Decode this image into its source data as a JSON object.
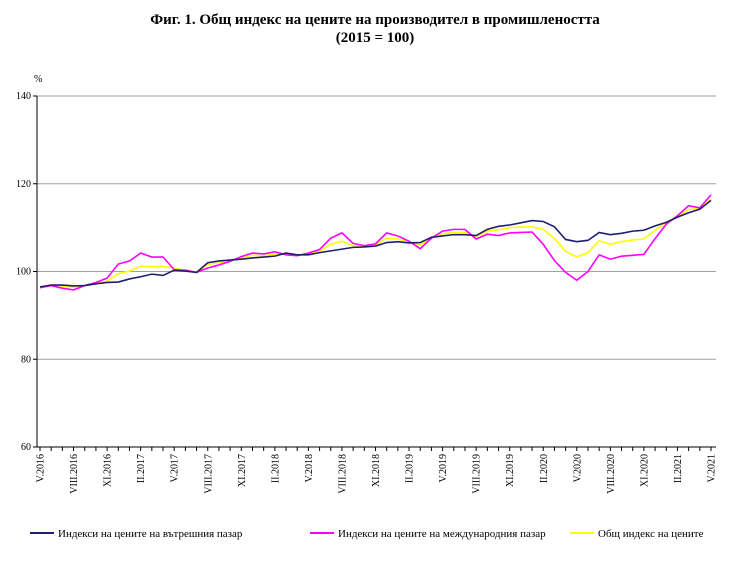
{
  "chart_data": {
    "type": "line",
    "title": "Фиг. 1. Общ индекс на цените на производител в промишлеността",
    "subtitle": "(2015 = 100)",
    "y_label": "%",
    "categories": [
      "V.2016",
      null,
      null,
      "VIII.2016",
      null,
      null,
      "XI.2016",
      null,
      null,
      "II.2017",
      null,
      null,
      "V.2017",
      null,
      null,
      "VIII.2017",
      null,
      null,
      "XI.2017",
      null,
      null,
      "II.2018",
      null,
      null,
      "V.2018",
      null,
      null,
      "VIII.2018",
      null,
      null,
      "XI.2018",
      null,
      null,
      "II.2019",
      null,
      null,
      "V.2019",
      null,
      null,
      "VIII.2019",
      null,
      null,
      "XI.2019",
      null,
      null,
      "II.2020",
      null,
      null,
      "V.2020",
      null,
      null,
      "VIII.2020",
      null,
      null,
      "XI.2020",
      null,
      null,
      "II.2021",
      null,
      null,
      "V.2021"
    ],
    "series": [
      {
        "name": "Индекси на цените на вътрешния пазар",
        "color": "#1f1f6e",
        "values": [
          96.5,
          96.9,
          96.9,
          96.7,
          96.8,
          97.2,
          97.5,
          97.6,
          98.3,
          98.8,
          99.4,
          99.1,
          100.3,
          100.1,
          99.8,
          102.0,
          102.4,
          102.6,
          102.8,
          103.1,
          103.3,
          103.5,
          104.2,
          103.8,
          103.8,
          104.3,
          104.7,
          105.1,
          105.5,
          105.6,
          105.8,
          106.6,
          106.8,
          106.5,
          106.6,
          107.8,
          108.1,
          108.4,
          108.4,
          108.2,
          109.6,
          110.3,
          110.6,
          111.1,
          111.6,
          111.4,
          110.2,
          107.3,
          106.8,
          107.1,
          108.9,
          108.4,
          108.7,
          109.2,
          109.4,
          110.4,
          111.2,
          112.4,
          113.4,
          114.2,
          116.2
        ]
      },
      {
        "name": "Индекси на цените на международния пазар",
        "color": "#ff00ff",
        "values": [
          96.3,
          96.8,
          96.2,
          95.8,
          96.8,
          97.5,
          98.5,
          101.7,
          102.4,
          104.2,
          103.3,
          103.3,
          100.4,
          100.3,
          99.8,
          100.8,
          101.5,
          102.3,
          103.4,
          104.2,
          104.0,
          104.5,
          103.8,
          103.6,
          104.2,
          105.0,
          107.6,
          108.8,
          106.4,
          105.9,
          106.3,
          108.8,
          108.1,
          106.9,
          105.2,
          107.6,
          109.2,
          109.6,
          109.6,
          107.4,
          108.5,
          108.2,
          108.8,
          108.9,
          109.0,
          106.2,
          102.5,
          99.8,
          98.0,
          100.0,
          103.8,
          102.8,
          103.5,
          103.7,
          103.9,
          107.5,
          110.8,
          112.7,
          115.0,
          114.5,
          117.5
        ]
      },
      {
        "name": "Общ индекс на цените",
        "color": "#ffff00",
        "values": [
          96.4,
          96.9,
          96.7,
          96.4,
          96.8,
          97.3,
          97.8,
          99.5,
          100.1,
          101.2,
          101.1,
          101.2,
          100.8,
          100.2,
          99.9,
          101.6,
          102.0,
          102.5,
          103.1,
          103.7,
          103.6,
          104.0,
          104.0,
          103.7,
          104.0,
          104.6,
          106.2,
          106.9,
          105.9,
          105.8,
          106.1,
          107.6,
          107.4,
          106.7,
          106.0,
          107.7,
          108.6,
          108.9,
          108.9,
          108.0,
          109.2,
          109.5,
          110.0,
          110.1,
          110.2,
          109.6,
          107.5,
          104.6,
          103.3,
          104.3,
          107.0,
          106.2,
          106.8,
          107.2,
          107.4,
          109.4,
          111.2,
          112.6,
          114.1,
          114.4,
          116.5
        ]
      }
    ],
    "ylim": [
      60,
      140
    ],
    "yticks": [
      60,
      80,
      100,
      120,
      140
    ],
    "grid": true,
    "legend": "bottom"
  }
}
